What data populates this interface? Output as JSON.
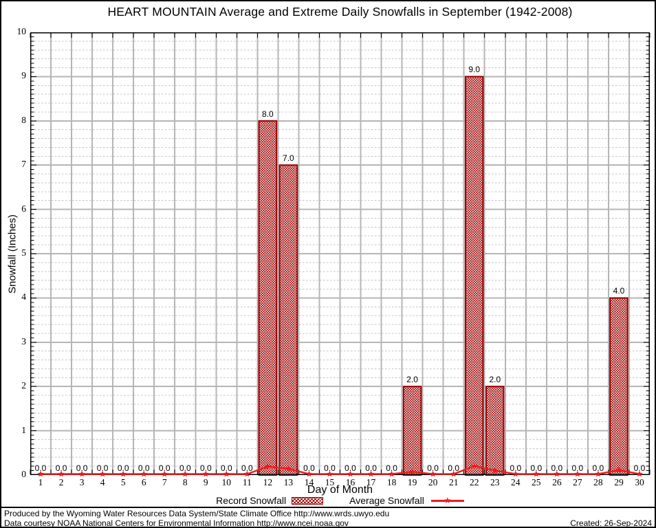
{
  "chart_data": {
    "type": "bar",
    "title": "HEART MOUNTAIN Average and Extreme Daily Snowfalls in September (1942-2008)",
    "xlabel": "Day of Month",
    "ylabel": "Snowfall (Inches)",
    "ylim": [
      0,
      10
    ],
    "y_major_step": 1,
    "y_minor_step": 0.2,
    "grid": true,
    "legend_position": "bottom",
    "bar_value_labels_shown": true,
    "categories": [
      1,
      2,
      3,
      4,
      5,
      6,
      7,
      8,
      9,
      10,
      11,
      12,
      13,
      14,
      15,
      16,
      17,
      18,
      19,
      20,
      21,
      22,
      23,
      24,
      25,
      26,
      27,
      28,
      29,
      30
    ],
    "series": [
      {
        "name": "Record Snowfall",
        "type": "bar",
        "color": "#990000",
        "values": [
          0,
          0,
          0,
          0,
          0,
          0,
          0,
          0,
          0,
          0,
          0,
          8,
          7,
          0,
          0,
          0,
          0,
          0,
          2,
          0,
          0,
          9,
          2,
          0,
          0,
          0,
          0,
          0,
          4,
          0
        ]
      },
      {
        "name": "Average Snowfall",
        "type": "line",
        "color": "#ee1c1c",
        "values": [
          0,
          0,
          0,
          0,
          0,
          0,
          0,
          0,
          0,
          0,
          0,
          0.17,
          0.12,
          0,
          0,
          0,
          0,
          0,
          0.05,
          0,
          0,
          0.18,
          0.08,
          0,
          0,
          0,
          0,
          0,
          0.09,
          0
        ]
      }
    ]
  },
  "colors": {
    "bar": "#990000",
    "line": "#ee1c1c",
    "grid_major": "#b5b5b5",
    "grid_minor": "#c3c3c3",
    "frame": "#000000"
  },
  "footer": {
    "line1": "Produced by the Wyoming Water Resources Data System/State Climate Office http://www.wrds.uwyo.edu",
    "line2": "Data courtesy NOAA National Centers for Environmental Information http://www.ncei.noaa.gov",
    "created": "Created: 26-Sep-2024"
  }
}
